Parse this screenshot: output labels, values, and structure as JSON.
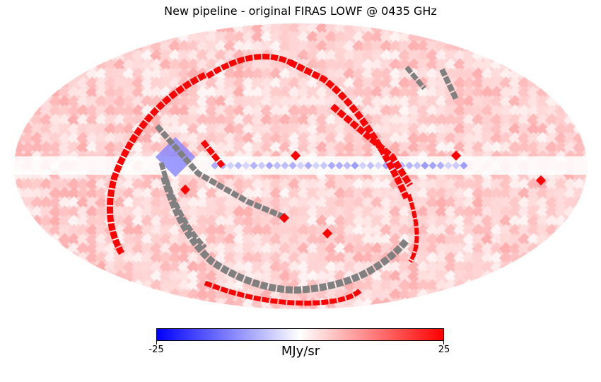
{
  "chart_data": {
    "type": "heatmap",
    "projection": "mollweide",
    "title": "New pipeline - original FIRAS LOWF @ 0435 GHz",
    "colormap": "bwr",
    "vmin": -25,
    "vmax": 25,
    "unit": "MJy/sr",
    "colorbar": {
      "orientation": "horizontal",
      "ticks": [
        -25,
        25
      ],
      "tick_labels": [
        "-25",
        "25"
      ],
      "label": "MJy/sr"
    },
    "masked_color": "#808080",
    "background_level": 4,
    "galactic_plane": {
      "level": -4,
      "center_level": -10
    },
    "features": [
      {
        "name": "saturated ring (left arc)",
        "value": 25
      },
      {
        "name": "saturated scan arcs (top)",
        "value": 25
      },
      {
        "name": "saturated diagonal stripe",
        "value": 25
      },
      {
        "name": "masked (UNSEEN) scan stripes",
        "value": null
      },
      {
        "name": "isolated saturated pixels",
        "value": 25
      }
    ]
  }
}
